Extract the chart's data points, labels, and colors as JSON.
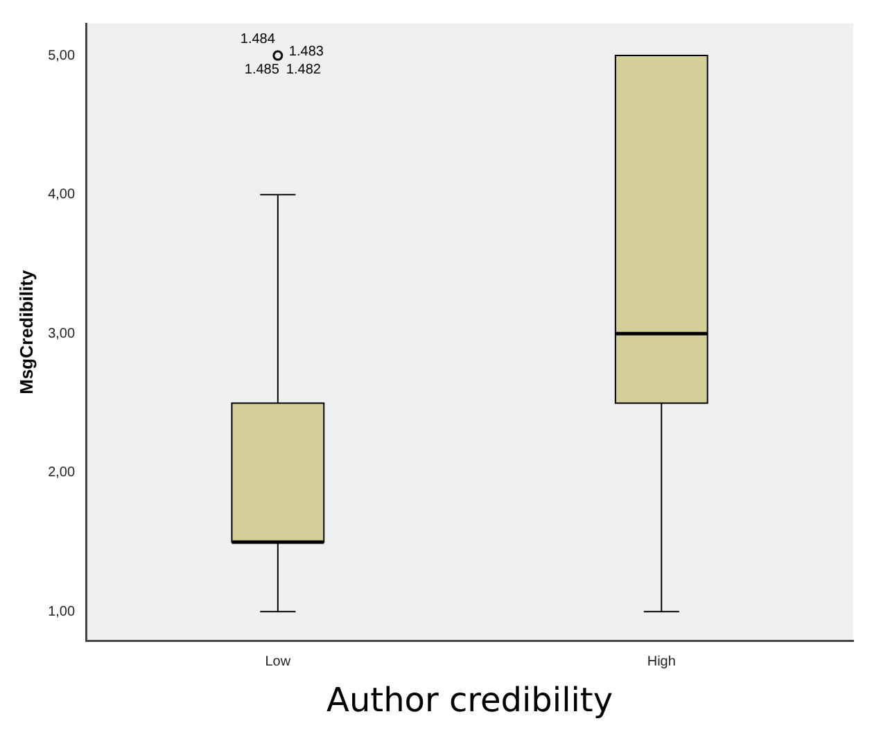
{
  "chart_data": {
    "type": "box",
    "xlabel": "Author credibility",
    "ylabel": "MsgCredibility",
    "categories": [
      "Low",
      "High"
    ],
    "color": "#d4cf99",
    "boxes": [
      {
        "low": 1,
        "q1": 1.5,
        "median": 1.5,
        "q3": 2.5,
        "high": 4,
        "outliers": [
          5
        ]
      },
      {
        "low": 1,
        "q1": 2.5,
        "median": 3,
        "q3": 5,
        "high": 5
      }
    ],
    "ylim": [
      0.79,
      5.23
    ],
    "yticks": [
      {
        "value": 1,
        "label": "1,00"
      },
      {
        "value": 2,
        "label": "2,00"
      },
      {
        "value": 3,
        "label": "3,00"
      },
      {
        "value": 4,
        "label": "4,00"
      },
      {
        "value": 5,
        "label": "5,00"
      }
    ],
    "annotations": [
      "1.484",
      "1.483",
      "1.485",
      "1.482"
    ]
  }
}
